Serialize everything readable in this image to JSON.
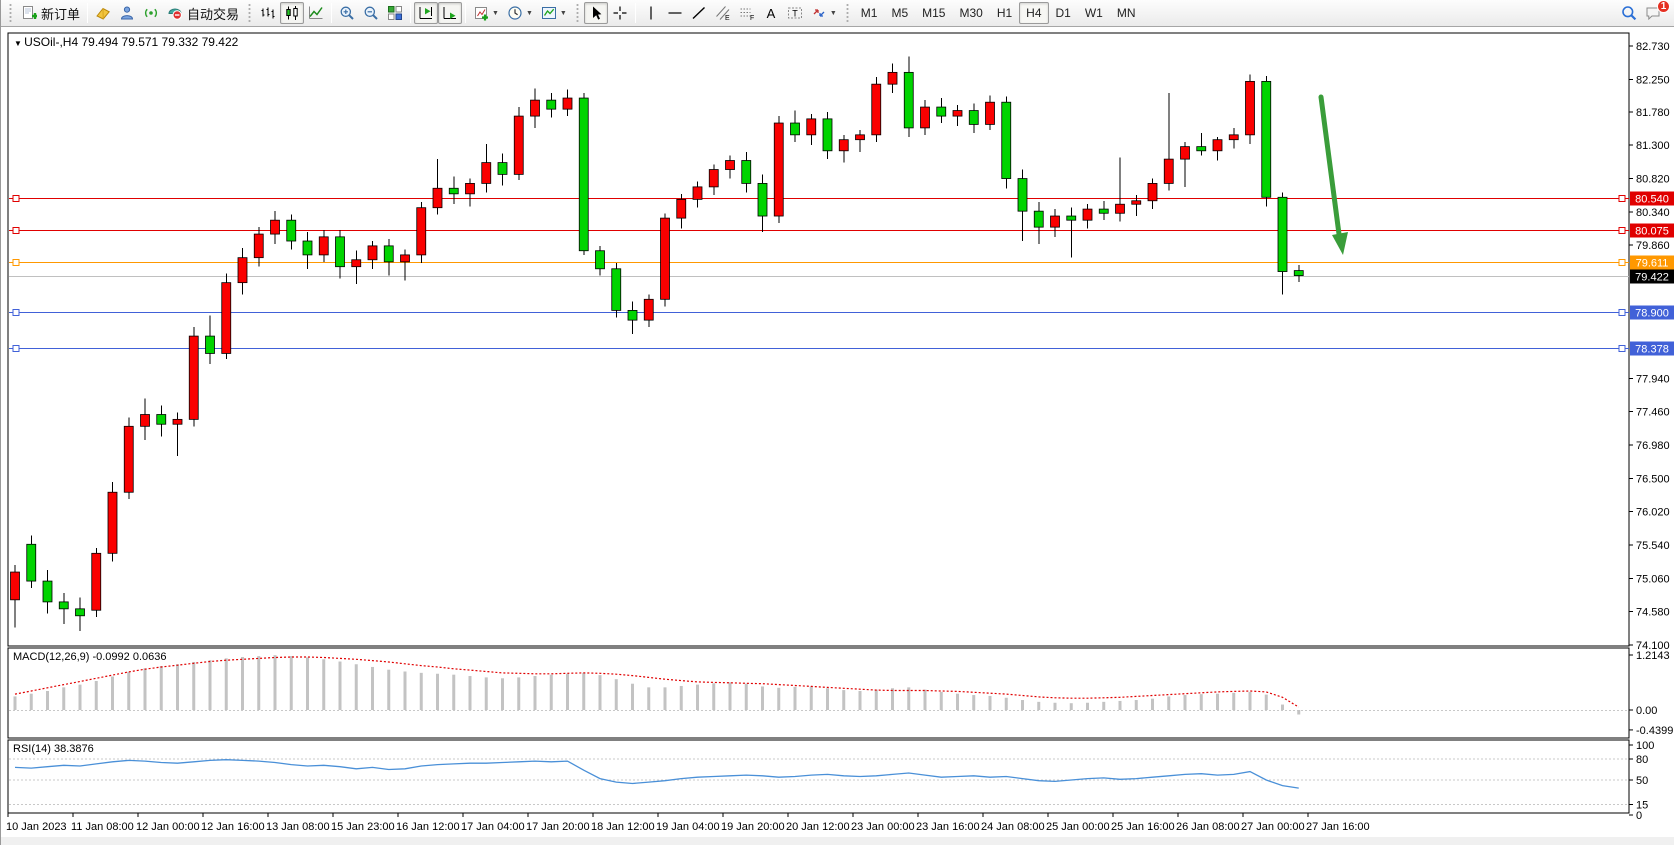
{
  "toolbar": {
    "groups": [
      {
        "items": [
          {
            "name": "new-order",
            "icon": "doc-plus",
            "label": "新订单"
          }
        ]
      },
      {
        "items": [
          {
            "name": "layouts",
            "icon": "book"
          },
          {
            "name": "community",
            "icon": "person"
          },
          {
            "name": "signals",
            "icon": "signal"
          },
          {
            "name": "auto-trading",
            "icon": "autotrade",
            "label": "自动交易"
          }
        ]
      },
      {
        "items": [
          {
            "name": "bars-chart",
            "icon": "bars"
          },
          {
            "name": "candles-chart",
            "icon": "candles",
            "active": true
          },
          {
            "name": "line-chart",
            "icon": "linechart"
          }
        ]
      },
      {
        "items": [
          {
            "name": "zoom-in",
            "icon": "zoom-in"
          },
          {
            "name": "zoom-out",
            "icon": "zoom-out"
          },
          {
            "name": "tile-windows",
            "icon": "tiles"
          }
        ]
      },
      {
        "items": [
          {
            "name": "shift-end",
            "icon": "shift",
            "active": true
          },
          {
            "name": "auto-scroll",
            "icon": "autoscroll",
            "active": true
          }
        ]
      },
      {
        "items": [
          {
            "name": "indicators",
            "icon": "indicators",
            "dropdown": true
          },
          {
            "name": "periods",
            "icon": "clock",
            "dropdown": true
          },
          {
            "name": "templates",
            "icon": "template",
            "dropdown": true
          }
        ]
      },
      {
        "items": [
          {
            "name": "cursor",
            "icon": "cursor",
            "active": true
          },
          {
            "name": "crosshair",
            "icon": "crosshair"
          }
        ]
      },
      {
        "items": [
          {
            "name": "vertical-line",
            "icon": "vline"
          },
          {
            "name": "horizontal-line",
            "icon": "hline"
          },
          {
            "name": "trendline",
            "icon": "trend"
          },
          {
            "name": "equidistant-channel",
            "icon": "channel"
          },
          {
            "name": "fibonacci",
            "icon": "fibo"
          },
          {
            "name": "text",
            "icon": "textA"
          },
          {
            "name": "text-label",
            "icon": "labelT"
          },
          {
            "name": "arrow-objects",
            "icon": "arrows",
            "dropdown": true
          }
        ]
      }
    ],
    "timeframes": [
      "M1",
      "M5",
      "M15",
      "M30",
      "H1",
      "H4",
      "D1",
      "W1",
      "MN"
    ],
    "active_timeframe": "H4",
    "right": [
      {
        "name": "search",
        "icon": "search"
      },
      {
        "name": "notifications",
        "icon": "chat",
        "badge": "1"
      }
    ]
  },
  "chart": {
    "title_symbol": "USOil-,H4",
    "title_ohlc": "79.494 79.571 79.332 79.422",
    "price_ticks": [
      "82.730",
      "82.250",
      "81.780",
      "81.300",
      "80.820",
      "80.340",
      "79.860",
      "77.940",
      "77.460",
      "76.980",
      "76.500",
      "76.020",
      "75.540",
      "75.060",
      "74.580",
      "74.100"
    ],
    "price_tick_values": [
      82.73,
      82.25,
      81.78,
      81.3,
      80.82,
      80.34,
      79.86,
      77.94,
      77.46,
      76.98,
      76.5,
      76.02,
      75.54,
      75.06,
      74.58,
      74.1
    ],
    "hlines": [
      {
        "price": 80.54,
        "label": "80.540",
        "color": "#e00000",
        "badge": "#e00000",
        "object": true
      },
      {
        "price": 80.075,
        "label": "80.075",
        "color": "#e00000",
        "badge": "#e00000",
        "object": true
      },
      {
        "price": 79.611,
        "label": "79.611",
        "color": "#ff9800",
        "badge": "#ff9800",
        "object": true
      },
      {
        "price": 79.422,
        "label": "79.422",
        "color": "#c0c0c0",
        "badge": "#000000",
        "object": false
      },
      {
        "price": 78.9,
        "label": "78.900",
        "color": "#4161d8",
        "badge": "#4161d8",
        "object": true
      },
      {
        "price": 78.378,
        "label": "78.378",
        "color": "#4161d8",
        "badge": "#4161d8",
        "object": true
      }
    ],
    "time_labels": [
      "10 Jan 2023",
      "11 Jan 08:00",
      "12 Jan 00:00",
      "12 Jan 16:00",
      "13 Jan 08:00",
      "15 Jan 23:00",
      "16 Jan 12:00",
      "17 Jan 04:00",
      "17 Jan 20:00",
      "18 Jan 12:00",
      "19 Jan 04:00",
      "19 Jan 20:00",
      "20 Jan 12:00",
      "23 Jan 00:00",
      "23 Jan 16:00",
      "24 Jan 08:00",
      "25 Jan 00:00",
      "25 Jan 16:00",
      "26 Jan 08:00",
      "27 Jan 00:00",
      "27 Jan 16:00"
    ],
    "arrow": {
      "color": "#3a9d3a"
    },
    "colors": {
      "bull": "#fa0000",
      "bear": "#00d400",
      "wick": "#000000",
      "frame": "#000000",
      "macd_hist": "#c3c3c3",
      "macd_signal": "#e00000",
      "rsi_line": "#4a90d8",
      "grid_dash": "#c8c8c8"
    }
  },
  "macd_panel": {
    "label": "MACD(12,26,9)",
    "value_main": "-0.0992",
    "value_signal": "0.0636",
    "axis": [
      "1.2143",
      "0.00",
      "-0.4399"
    ],
    "axis_values": [
      1.2143,
      0.0,
      -0.4399
    ]
  },
  "rsi_panel": {
    "label": "RSI(14)",
    "value": "38.3876",
    "axis": [
      "100",
      "80",
      "50",
      "15",
      "0"
    ],
    "axis_values": [
      100,
      80,
      50,
      15,
      0
    ],
    "dashed_levels": [
      80,
      50,
      15
    ]
  },
  "chart_data": {
    "type": "candlestick",
    "symbol": "USOil",
    "timeframe": "H4",
    "note": "red = bullish, green = bearish (CN convention)",
    "ohlc_current": {
      "open": 79.494,
      "high": 79.571,
      "low": 79.332,
      "close": 79.422
    },
    "price_range": [
      74.1,
      82.97
    ],
    "candles": [
      [
        74.75,
        75.25,
        74.35,
        75.15
      ],
      [
        75.55,
        75.68,
        74.92,
        75.02
      ],
      [
        75.02,
        75.18,
        74.55,
        74.72
      ],
      [
        74.72,
        74.85,
        74.4,
        74.62
      ],
      [
        74.62,
        74.78,
        74.3,
        74.52
      ],
      [
        74.6,
        75.5,
        74.5,
        75.42
      ],
      [
        75.42,
        76.45,
        75.3,
        76.3
      ],
      [
        76.3,
        77.38,
        76.2,
        77.25
      ],
      [
        77.25,
        77.65,
        77.05,
        77.42
      ],
      [
        77.42,
        77.55,
        77.1,
        77.28
      ],
      [
        77.28,
        77.45,
        76.82,
        77.35
      ],
      [
        77.35,
        78.68,
        77.25,
        78.55
      ],
      [
        78.55,
        78.85,
        78.15,
        78.3
      ],
      [
        78.3,
        79.45,
        78.22,
        79.32
      ],
      [
        79.32,
        79.82,
        79.15,
        79.68
      ],
      [
        79.68,
        80.12,
        79.55,
        80.02
      ],
      [
        80.02,
        80.35,
        79.88,
        80.22
      ],
      [
        80.22,
        80.3,
        79.8,
        79.92
      ],
      [
        79.92,
        80.05,
        79.52,
        79.72
      ],
      [
        79.72,
        80.08,
        79.62,
        79.98
      ],
      [
        79.98,
        80.08,
        79.38,
        79.55
      ],
      [
        79.55,
        79.78,
        79.3,
        79.65
      ],
      [
        79.65,
        79.92,
        79.52,
        79.85
      ],
      [
        79.85,
        79.95,
        79.42,
        79.62
      ],
      [
        79.62,
        79.8,
        79.35,
        79.72
      ],
      [
        79.72,
        80.48,
        79.6,
        80.4
      ],
      [
        80.4,
        81.1,
        80.3,
        80.68
      ],
      [
        80.68,
        80.85,
        80.45,
        80.6
      ],
      [
        80.6,
        80.82,
        80.42,
        80.75
      ],
      [
        80.75,
        81.32,
        80.62,
        81.05
      ],
      [
        81.05,
        81.18,
        80.72,
        80.88
      ],
      [
        80.88,
        81.85,
        80.8,
        81.72
      ],
      [
        81.72,
        82.12,
        81.55,
        81.95
      ],
      [
        81.95,
        82.05,
        81.7,
        81.82
      ],
      [
        81.82,
        82.1,
        81.72,
        81.98
      ],
      [
        81.98,
        82.05,
        79.72,
        79.78
      ],
      [
        79.78,
        79.85,
        79.42,
        79.52
      ],
      [
        79.52,
        79.6,
        78.82,
        78.92
      ],
      [
        78.92,
        79.05,
        78.58,
        78.78
      ],
      [
        78.78,
        79.15,
        78.68,
        79.08
      ],
      [
        79.08,
        80.32,
        78.98,
        80.25
      ],
      [
        80.25,
        80.6,
        80.1,
        80.52
      ],
      [
        80.52,
        80.78,
        80.4,
        80.7
      ],
      [
        80.7,
        81.02,
        80.58,
        80.95
      ],
      [
        80.95,
        81.15,
        80.82,
        81.08
      ],
      [
        81.08,
        81.2,
        80.62,
        80.75
      ],
      [
        80.75,
        80.88,
        80.05,
        80.28
      ],
      [
        80.28,
        81.72,
        80.18,
        81.62
      ],
      [
        81.62,
        81.8,
        81.35,
        81.45
      ],
      [
        81.45,
        81.75,
        81.3,
        81.68
      ],
      [
        81.68,
        81.78,
        81.1,
        81.22
      ],
      [
        81.22,
        81.45,
        81.05,
        81.38
      ],
      [
        81.38,
        81.52,
        81.2,
        81.45
      ],
      [
        81.45,
        82.28,
        81.35,
        82.18
      ],
      [
        82.18,
        82.48,
        82.05,
        82.35
      ],
      [
        82.35,
        82.58,
        81.42,
        81.55
      ],
      [
        81.55,
        81.95,
        81.45,
        81.85
      ],
      [
        81.85,
        81.98,
        81.62,
        81.72
      ],
      [
        81.72,
        81.88,
        81.58,
        81.8
      ],
      [
        81.8,
        81.9,
        81.48,
        81.6
      ],
      [
        81.6,
        82.02,
        81.52,
        81.92
      ],
      [
        81.92,
        82.0,
        80.68,
        80.82
      ],
      [
        80.82,
        80.95,
        79.92,
        80.35
      ],
      [
        80.35,
        80.48,
        79.88,
        80.12
      ],
      [
        80.12,
        80.38,
        79.98,
        80.28
      ],
      [
        80.28,
        80.4,
        79.68,
        80.22
      ],
      [
        80.22,
        80.45,
        80.1,
        80.38
      ],
      [
        80.38,
        80.5,
        80.22,
        80.32
      ],
      [
        80.32,
        81.12,
        80.2,
        80.45
      ],
      [
        80.45,
        80.58,
        80.28,
        80.5
      ],
      [
        80.5,
        80.82,
        80.38,
        80.75
      ],
      [
        80.75,
        82.05,
        80.65,
        81.1
      ],
      [
        81.1,
        81.35,
        80.7,
        81.28
      ],
      [
        81.28,
        81.48,
        81.15,
        81.22
      ],
      [
        81.22,
        81.42,
        81.08,
        81.38
      ],
      [
        81.38,
        81.55,
        81.25,
        81.45
      ],
      [
        81.45,
        82.32,
        81.32,
        82.22
      ],
      [
        82.22,
        82.3,
        80.42,
        80.55
      ],
      [
        80.55,
        80.62,
        79.15,
        79.48
      ],
      [
        79.494,
        79.571,
        79.332,
        79.422
      ]
    ],
    "macd_histogram": [
      0.3,
      0.36,
      0.42,
      0.5,
      0.56,
      0.64,
      0.74,
      0.84,
      0.92,
      0.97,
      1.01,
      1.06,
      1.1,
      1.14,
      1.17,
      1.19,
      1.21,
      1.19,
      1.16,
      1.12,
      1.07,
      1.01,
      0.95,
      0.89,
      0.85,
      0.82,
      0.8,
      0.78,
      0.75,
      0.72,
      0.7,
      0.72,
      0.75,
      0.78,
      0.8,
      0.82,
      0.77,
      0.68,
      0.58,
      0.5,
      0.5,
      0.53,
      0.56,
      0.59,
      0.61,
      0.58,
      0.52,
      0.49,
      0.51,
      0.52,
      0.48,
      0.44,
      0.42,
      0.45,
      0.48,
      0.5,
      0.45,
      0.4,
      0.36,
      0.33,
      0.31,
      0.27,
      0.22,
      0.18,
      0.16,
      0.15,
      0.16,
      0.18,
      0.2,
      0.22,
      0.25,
      0.3,
      0.33,
      0.35,
      0.36,
      0.38,
      0.4,
      0.34,
      0.12,
      -0.0992
    ],
    "macd_signal": [
      0.35,
      0.42,
      0.49,
      0.56,
      0.63,
      0.7,
      0.77,
      0.84,
      0.9,
      0.95,
      0.99,
      1.03,
      1.07,
      1.1,
      1.12,
      1.14,
      1.16,
      1.17,
      1.17,
      1.16,
      1.14,
      1.12,
      1.09,
      1.06,
      1.02,
      0.98,
      0.95,
      0.91,
      0.88,
      0.85,
      0.82,
      0.81,
      0.8,
      0.8,
      0.81,
      0.82,
      0.81,
      0.79,
      0.76,
      0.72,
      0.68,
      0.65,
      0.62,
      0.61,
      0.6,
      0.59,
      0.58,
      0.56,
      0.54,
      0.52,
      0.5,
      0.48,
      0.46,
      0.44,
      0.43,
      0.43,
      0.43,
      0.42,
      0.41,
      0.39,
      0.37,
      0.35,
      0.32,
      0.29,
      0.27,
      0.26,
      0.26,
      0.27,
      0.28,
      0.3,
      0.32,
      0.34,
      0.36,
      0.38,
      0.4,
      0.41,
      0.42,
      0.4,
      0.28,
      0.0636
    ],
    "rsi_values": [
      68,
      67,
      69,
      71,
      70,
      73,
      76,
      78,
      77,
      75,
      74,
      76,
      78,
      79,
      78,
      77,
      75,
      72,
      70,
      71,
      69,
      66,
      68,
      65,
      66,
      70,
      72,
      73,
      74,
      74,
      75,
      76,
      77,
      76,
      77,
      64,
      52,
      47,
      45,
      47,
      49,
      52,
      54,
      55,
      56,
      57,
      56,
      54,
      55,
      57,
      58,
      56,
      55,
      56,
      58,
      60,
      57,
      54,
      55,
      56,
      54,
      55,
      52,
      49,
      48,
      50,
      52,
      53,
      51,
      52,
      54,
      56,
      58,
      59,
      57,
      58,
      62,
      50,
      42,
      38.39
    ]
  }
}
